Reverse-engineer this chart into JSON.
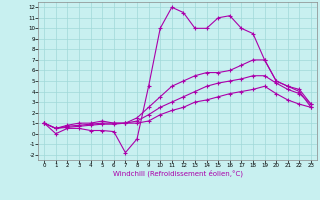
{
  "xlabel": "Windchill (Refroidissement éolien,°C)",
  "bg_color": "#c8f0f0",
  "grid_color": "#a0d8d8",
  "line_color": "#aa00aa",
  "xlim": [
    -0.5,
    23.5
  ],
  "ylim": [
    -2.5,
    12.5
  ],
  "xticks": [
    0,
    1,
    2,
    3,
    4,
    5,
    6,
    7,
    8,
    9,
    10,
    11,
    12,
    13,
    14,
    15,
    16,
    17,
    18,
    19,
    20,
    21,
    22,
    23
  ],
  "yticks": [
    -2,
    -1,
    0,
    1,
    2,
    3,
    4,
    5,
    6,
    7,
    8,
    9,
    10,
    11,
    12
  ],
  "line1_x": [
    0,
    1,
    2,
    3,
    4,
    5,
    6,
    7,
    8,
    9,
    10,
    11,
    12,
    13,
    14,
    15,
    16,
    17,
    18,
    19,
    20,
    21,
    22,
    23
  ],
  "line1_y": [
    1,
    0,
    0.5,
    0.5,
    0.3,
    0.3,
    0.2,
    -1.8,
    -0.5,
    4.5,
    10,
    12,
    11.5,
    10,
    10,
    11,
    11.2,
    10,
    9.5,
    7,
    5,
    4.5,
    4,
    2.5
  ],
  "line2_x": [
    0,
    1,
    2,
    3,
    4,
    5,
    6,
    7,
    8,
    9,
    10,
    11,
    12,
    13,
    14,
    15,
    16,
    17,
    18,
    19,
    20,
    21,
    22,
    23
  ],
  "line2_y": [
    1,
    0.5,
    0.8,
    1,
    1,
    1.2,
    1,
    1,
    1.5,
    2.5,
    3.5,
    4.5,
    5,
    5.5,
    5.8,
    5.8,
    6,
    6.5,
    7,
    7,
    5,
    4.5,
    4.2,
    2.8
  ],
  "line3_x": [
    0,
    1,
    2,
    3,
    4,
    5,
    6,
    7,
    8,
    9,
    10,
    11,
    12,
    13,
    14,
    15,
    16,
    17,
    18,
    19,
    20,
    21,
    22,
    23
  ],
  "line3_y": [
    1,
    0.5,
    0.7,
    0.8,
    0.9,
    1,
    1,
    1,
    1.2,
    1.8,
    2.5,
    3,
    3.5,
    4,
    4.5,
    4.8,
    5,
    5.2,
    5.5,
    5.5,
    4.8,
    4.2,
    3.8,
    2.8
  ],
  "line4_x": [
    0,
    1,
    2,
    3,
    4,
    5,
    6,
    7,
    8,
    9,
    10,
    11,
    12,
    13,
    14,
    15,
    16,
    17,
    18,
    19,
    20,
    21,
    22,
    23
  ],
  "line4_y": [
    1,
    0.5,
    0.6,
    0.7,
    0.8,
    0.9,
    0.9,
    1,
    1,
    1.2,
    1.8,
    2.2,
    2.5,
    3,
    3.2,
    3.5,
    3.8,
    4,
    4.2,
    4.5,
    3.8,
    3.2,
    2.8,
    2.5
  ]
}
